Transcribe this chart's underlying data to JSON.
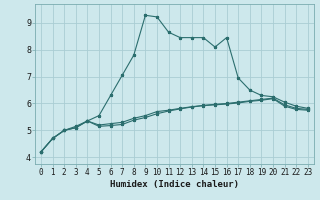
{
  "xlabel": "Humidex (Indice chaleur)",
  "background_color": "#cde8ec",
  "grid_color": "#aacdd4",
  "line_color": "#2b6e6e",
  "x_values": [
    0,
    1,
    2,
    3,
    4,
    5,
    6,
    7,
    8,
    9,
    10,
    11,
    12,
    13,
    14,
    15,
    16,
    17,
    18,
    19,
    20,
    21,
    22,
    23
  ],
  "series": [
    [
      4.2,
      4.7,
      5.0,
      5.1,
      5.35,
      5.2,
      5.25,
      5.3,
      5.45,
      5.55,
      5.7,
      5.75,
      5.82,
      5.88,
      5.93,
      5.97,
      6.0,
      6.05,
      6.1,
      6.15,
      6.2,
      5.95,
      5.82,
      5.78
    ],
    [
      4.2,
      4.7,
      5.0,
      5.1,
      5.35,
      5.15,
      5.18,
      5.22,
      5.38,
      5.48,
      5.62,
      5.72,
      5.8,
      5.87,
      5.92,
      5.95,
      5.98,
      6.02,
      6.08,
      6.12,
      6.18,
      5.9,
      5.78,
      5.75
    ],
    [
      4.2,
      4.7,
      5.0,
      5.15,
      5.35,
      5.55,
      6.3,
      7.05,
      7.8,
      9.28,
      9.22,
      8.65,
      8.45,
      8.45,
      8.45,
      8.1,
      8.45,
      6.95,
      6.5,
      6.3,
      6.25,
      6.05,
      5.9,
      5.82
    ]
  ],
  "ylim": [
    3.75,
    9.7
  ],
  "xlim": [
    -0.5,
    23.5
  ],
  "yticks": [
    4,
    5,
    6,
    7,
    8,
    9
  ],
  "xticks": [
    0,
    1,
    2,
    3,
    4,
    5,
    6,
    7,
    8,
    9,
    10,
    11,
    12,
    13,
    14,
    15,
    16,
    17,
    18,
    19,
    20,
    21,
    22,
    23
  ],
  "tick_fontsize": 5.5,
  "xlabel_fontsize": 6.5,
  "marker_size": 2.2
}
